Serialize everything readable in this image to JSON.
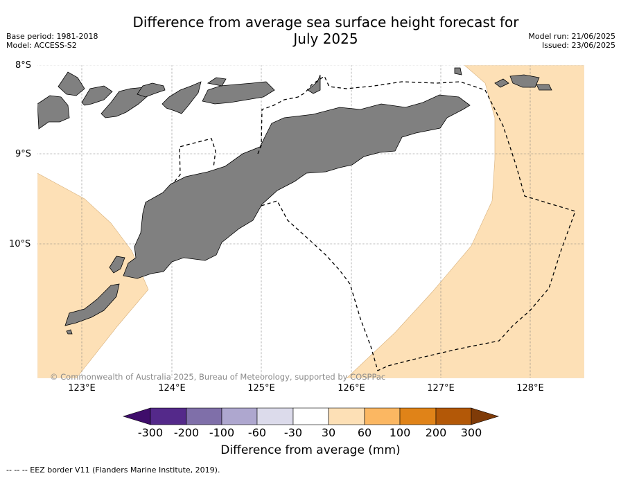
{
  "title_line1": "Difference from average sea surface height forecast for",
  "title_line2": "July 2025",
  "meta_left": {
    "base_period": "Base period: 1981-2018",
    "model": "Model: ACCESS-S2"
  },
  "meta_right": {
    "model_run": "Model run: 21/06/2025",
    "issued": "Issued: 23/06/2025"
  },
  "map": {
    "lat_labels": [
      "8°S",
      "9°S",
      "10°S"
    ],
    "lon_labels": [
      "123°E",
      "124°E",
      "125°E",
      "126°E",
      "127°E",
      "128°E"
    ],
    "land_color": "#808080",
    "anomaly_fill_color": "#fde0b6",
    "eez_line_style": "dashed",
    "copyright": "© Commonwealth of Australia 2025, Bureau of Meteorology, supported by COSPPac"
  },
  "colorbar": {
    "label": "Difference from average (mm)",
    "ticks": [
      "-300",
      "-200",
      "-100",
      "-60",
      "-30",
      "30",
      "60",
      "100",
      "200",
      "300"
    ],
    "colors": [
      "#3f0d6b",
      "#54298a",
      "#7f6fa9",
      "#aea7cf",
      "#dcdbeb",
      "#ffffff",
      "#fde0b6",
      "#fbb762",
      "#e08318",
      "#b35807",
      "#7f3b08"
    ]
  },
  "eez_note": "--  --  -- EEZ border V11 (Flanders Marine Institute, 2019)."
}
